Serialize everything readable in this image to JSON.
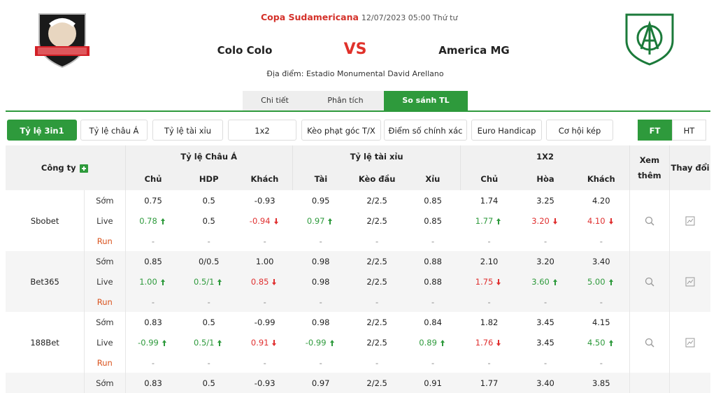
{
  "header": {
    "league": "Copa Sudamericana",
    "datetime": "12/07/2023 05:00 Thứ tư",
    "home": "Colo Colo",
    "vs": "VS",
    "away": "America MG",
    "venue": "Địa điểm: Estadio Monumental David Arellano"
  },
  "tabs": {
    "items": [
      "Chi tiết",
      "Phân tích",
      "So sánh TL"
    ],
    "active": 2
  },
  "filters": {
    "items": [
      "Tỷ lệ 3in1",
      "Tỷ lệ châu Á",
      "Tỷ lệ tài xỉu",
      "1x2",
      "Kèo phạt góc T/X",
      "Điểm số chính xác",
      "Euro Handicap",
      "Cơ hội kép"
    ],
    "active": 0
  },
  "period": {
    "items": [
      "FT",
      "HT"
    ],
    "active": 0
  },
  "table": {
    "company_header": "Công ty",
    "groups": [
      "Tỷ lệ Châu Á",
      "Tỷ lệ tài xỉu",
      "1X2"
    ],
    "more": "Xem thêm",
    "changes": "Thay đổi",
    "columns": [
      "Chủ",
      "HDP",
      "Khách",
      "Tài",
      "Kèo đầu",
      "Xỉu",
      "Chủ",
      "Hòa",
      "Khách"
    ],
    "rows": [
      {
        "company": "Sbobet",
        "lines": [
          {
            "label": "Sớm",
            "values": [
              "0.75",
              "0.5",
              "-0.93",
              "0.95",
              "2/2.5",
              "0.85",
              "1.74",
              "3.25",
              "4.20"
            ],
            "trend": [
              null,
              null,
              null,
              null,
              null,
              null,
              null,
              null,
              null
            ]
          },
          {
            "label": "Live",
            "values": [
              "0.78",
              "0.5",
              "-0.94",
              "0.97",
              "2/2.5",
              "0.85",
              "1.77",
              "3.20",
              "4.10"
            ],
            "trend": [
              "up",
              null,
              "down",
              "up",
              null,
              null,
              "up",
              "down",
              "down"
            ]
          },
          {
            "label": "Run",
            "values": [
              "-",
              "-",
              "-",
              "-",
              "-",
              "-",
              "-",
              "-",
              "-"
            ],
            "trend": [
              null,
              null,
              null,
              null,
              null,
              null,
              null,
              null,
              null
            ]
          }
        ]
      },
      {
        "company": "Bet365",
        "lines": [
          {
            "label": "Sớm",
            "values": [
              "0.85",
              "0/0.5",
              "1.00",
              "0.98",
              "2/2.5",
              "0.88",
              "2.10",
              "3.20",
              "3.40"
            ],
            "trend": [
              null,
              null,
              null,
              null,
              null,
              null,
              null,
              null,
              null
            ]
          },
          {
            "label": "Live",
            "values": [
              "1.00",
              "0.5/1",
              "0.85",
              "0.98",
              "2/2.5",
              "0.88",
              "1.75",
              "3.60",
              "5.00"
            ],
            "trend": [
              "up",
              "up",
              "down",
              null,
              null,
              null,
              "down",
              "up",
              "up"
            ]
          },
          {
            "label": "Run",
            "values": [
              "-",
              "-",
              "-",
              "-",
              "-",
              "-",
              "-",
              "-",
              "-"
            ],
            "trend": [
              null,
              null,
              null,
              null,
              null,
              null,
              null,
              null,
              null
            ]
          }
        ]
      },
      {
        "company": "188Bet",
        "lines": [
          {
            "label": "Sớm",
            "values": [
              "0.83",
              "0.5",
              "-0.99",
              "0.98",
              "2/2.5",
              "0.84",
              "1.82",
              "3.45",
              "4.15"
            ],
            "trend": [
              null,
              null,
              null,
              null,
              null,
              null,
              null,
              null,
              null
            ]
          },
          {
            "label": "Live",
            "values": [
              "-0.99",
              "0.5/1",
              "0.91",
              "-0.99",
              "2/2.5",
              "0.89",
              "1.76",
              "3.45",
              "4.50"
            ],
            "trend": [
              "up",
              "up",
              "down",
              "up",
              null,
              "up",
              "down",
              null,
              "up"
            ]
          },
          {
            "label": "Run",
            "values": [
              "-",
              "-",
              "-",
              "-",
              "-",
              "-",
              "-",
              "-",
              "-"
            ],
            "trend": [
              null,
              null,
              null,
              null,
              null,
              null,
              null,
              null,
              null
            ]
          }
        ]
      },
      {
        "company": null,
        "lines": [
          {
            "label": "Sớm",
            "values": [
              "0.83",
              "0.5",
              "-0.93",
              "0.97",
              "2/2.5",
              "0.91",
              "1.77",
              "3.40",
              "3.85"
            ],
            "trend": [
              null,
              null,
              null,
              null,
              null,
              null,
              null,
              null,
              null
            ]
          }
        ]
      }
    ]
  }
}
